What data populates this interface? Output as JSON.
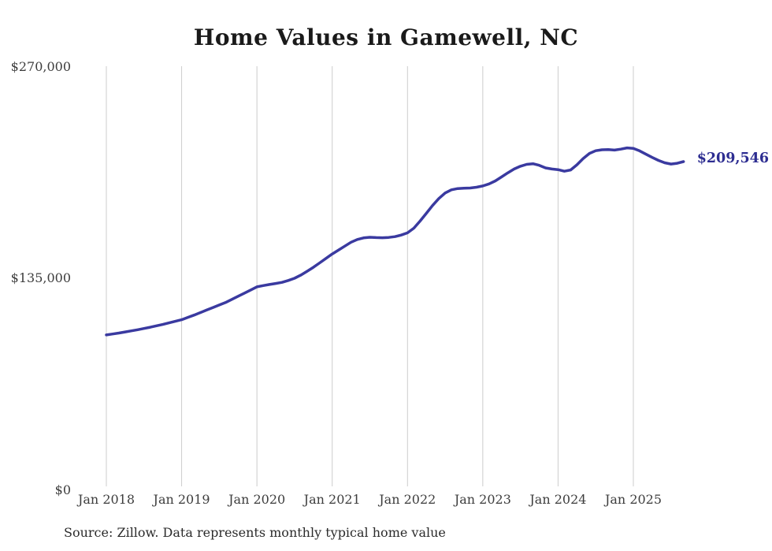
{
  "chart_data": {
    "type": "line",
    "title": "Home Values in Gamewell, NC",
    "xlabel": "",
    "ylabel": "",
    "ylim": [
      0,
      270000
    ],
    "grid": "vertical-only",
    "gridline_color": "#cccccc",
    "background_color": "#ffffff",
    "y_ticks": [
      {
        "label": "$270,000",
        "value": 270000
      },
      {
        "label": "$135,000",
        "value": 135000
      },
      {
        "label": "$0",
        "value": 0
      }
    ],
    "x_tick_labels": [
      "Jan 2018",
      "Jan 2019",
      "Jan 2020",
      "Jan 2021",
      "Jan 2022",
      "Jan 2023",
      "Jan 2024",
      "Jan 2025"
    ],
    "end_label": "$209,546",
    "end_label_color": "#2d2d91",
    "source": "Source: Zillow. Data represents monthly typical home value",
    "series": [
      {
        "name": "Typical home value",
        "color": "#3a3aa0",
        "months": [
          "2018-01",
          "2018-02",
          "2018-03",
          "2018-04",
          "2018-05",
          "2018-06",
          "2018-07",
          "2018-08",
          "2018-09",
          "2018-10",
          "2018-11",
          "2018-12",
          "2019-01",
          "2019-02",
          "2019-03",
          "2019-04",
          "2019-05",
          "2019-06",
          "2019-07",
          "2019-08",
          "2019-09",
          "2019-10",
          "2019-11",
          "2019-12",
          "2020-01",
          "2020-02",
          "2020-03",
          "2020-04",
          "2020-05",
          "2020-06",
          "2020-07",
          "2020-08",
          "2020-09",
          "2020-10",
          "2020-11",
          "2020-12",
          "2021-01",
          "2021-02",
          "2021-03",
          "2021-04",
          "2021-05",
          "2021-06",
          "2021-07",
          "2021-08",
          "2021-09",
          "2021-10",
          "2021-11",
          "2021-12",
          "2022-01",
          "2022-02",
          "2022-03",
          "2022-04",
          "2022-05",
          "2022-06",
          "2022-07",
          "2022-08",
          "2022-09",
          "2022-10",
          "2022-11",
          "2022-12",
          "2023-01",
          "2023-02",
          "2023-03",
          "2023-04",
          "2023-05",
          "2023-06",
          "2023-07",
          "2023-08",
          "2023-09",
          "2023-10",
          "2023-11",
          "2023-12",
          "2024-01",
          "2024-02",
          "2024-03",
          "2024-04",
          "2024-05",
          "2024-06",
          "2024-07",
          "2024-08",
          "2024-09",
          "2024-10",
          "2024-11",
          "2024-12",
          "2025-01",
          "2025-02",
          "2025-03",
          "2025-04",
          "2025-05",
          "2025-06",
          "2025-07",
          "2025-08",
          "2025-09"
        ],
        "values": [
          98800,
          99400,
          100000,
          100700,
          101400,
          102100,
          102900,
          103700,
          104600,
          105500,
          106500,
          107500,
          108500,
          110000,
          111500,
          113100,
          114700,
          116300,
          117900,
          119500,
          121500,
          123500,
          125500,
          127500,
          129500,
          130300,
          131000,
          131700,
          132400,
          133600,
          135000,
          137000,
          139500,
          142000,
          144800,
          147700,
          150500,
          153000,
          155500,
          158000,
          159800,
          160800,
          161200,
          161000,
          160900,
          161100,
          161600,
          162600,
          164000,
          167000,
          171500,
          176500,
          181500,
          186000,
          189500,
          191500,
          192300,
          192600,
          192700,
          193200,
          194000,
          195300,
          197200,
          199800,
          202400,
          204800,
          206600,
          207800,
          208200,
          207200,
          205500,
          204800,
          204400,
          203400,
          204200,
          207500,
          211500,
          214800,
          216500,
          217100,
          217200,
          216900,
          217500,
          218300,
          218000,
          216400,
          214300,
          212200,
          210300,
          208800,
          208000,
          208500,
          209546
        ],
        "last_value": 209546
      }
    ]
  }
}
